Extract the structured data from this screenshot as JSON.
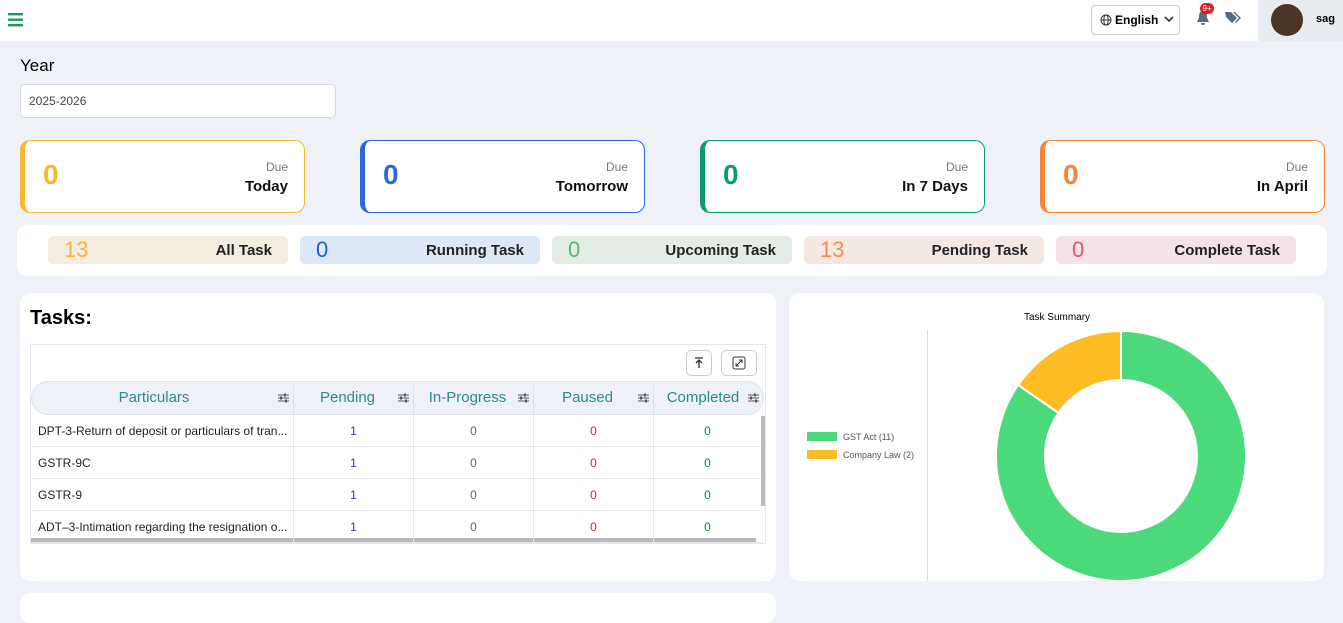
{
  "header": {
    "language": "English",
    "notification_badge": "9+",
    "user": "sag"
  },
  "year": {
    "label": "Year",
    "value": "2025-2026"
  },
  "due_cards": [
    {
      "value": 0,
      "caption": "Due",
      "label": "Today",
      "color": "#f5b82e"
    },
    {
      "value": 0,
      "caption": "Due",
      "label": "Tomorrow",
      "color": "#2f66dc"
    },
    {
      "value": 0,
      "caption": "Due",
      "label": "In 7 Days",
      "color": "#0d9b72"
    },
    {
      "value": 0,
      "caption": "Due",
      "label": "In April",
      "color": "#f5853a"
    }
  ],
  "task_stats": [
    {
      "value": 13,
      "label": "All Task",
      "color": "#f2b53a",
      "background": "#f3ede0"
    },
    {
      "value": 0,
      "label": "Running Task",
      "color": "#1f5fc9",
      "background": "#dce8f5"
    },
    {
      "value": 0,
      "label": "Upcoming Task",
      "color": "#5cb87a",
      "background": "#e3ede6"
    },
    {
      "value": 13,
      "label": "Pending Task",
      "color": "#f58a50",
      "background": "#f5e8e1"
    },
    {
      "value": 0,
      "label": "Complete Task",
      "color": "#e0557a",
      "background": "#f3e2e8"
    }
  ],
  "tasks": {
    "title": "Tasks:",
    "columns": [
      "Particulars",
      "Pending",
      "In-Progress",
      "Paused",
      "Completed"
    ],
    "rows": [
      [
        "DPT-3-Return of deposit or particulars of tran...",
        1,
        0,
        0,
        0
      ],
      [
        "GSTR-9C",
        1,
        0,
        0,
        0
      ],
      [
        "GSTR-9",
        1,
        0,
        0,
        0
      ],
      [
        "ADT–3-Intimation regarding the resignation o...",
        1,
        0,
        0,
        0
      ]
    ]
  },
  "chart_data": {
    "type": "pie",
    "donut": true,
    "title": "Task Summary",
    "categories": [
      "GST Act (11)",
      "Company Law (2)"
    ],
    "values": [
      11,
      2
    ],
    "colors": [
      "#4cd97b",
      "#fbbd23"
    ]
  }
}
